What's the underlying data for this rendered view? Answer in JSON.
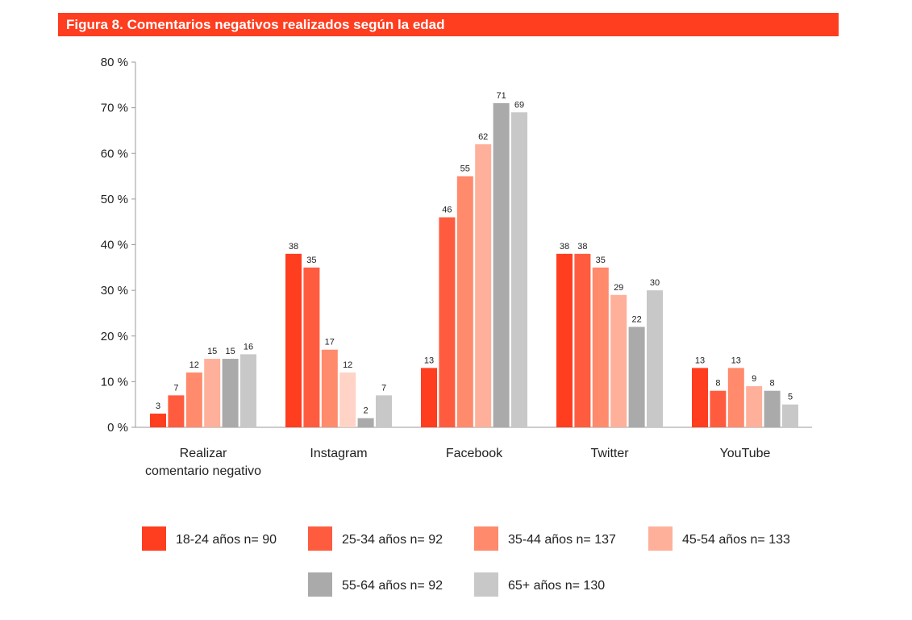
{
  "figure_title": "Figura 8. Comentarios negativos realizados según la edad",
  "chart_data": {
    "type": "bar",
    "title": "Figura 8. Comentarios negativos realizados según la edad",
    "xlabel": "",
    "ylabel": "",
    "ylim": [
      0,
      80
    ],
    "yticks": [
      "0 %",
      "10 %",
      "20 %",
      "30 %",
      "40 %",
      "50 %",
      "60 %",
      "70 %",
      "80 %"
    ],
    "grid": false,
    "legend_position": "bottom",
    "categories": [
      [
        "Realizar",
        "comentario negativo"
      ],
      [
        "Instagram"
      ],
      [
        "Facebook"
      ],
      [
        "Twitter"
      ],
      [
        "YouTube"
      ]
    ],
    "series": [
      {
        "name": "18-24 años  n= 90",
        "color": "#ff3d1f",
        "values": [
          3,
          38,
          13,
          38,
          13
        ]
      },
      {
        "name": "25-34 años n= 92",
        "color": "#ff5c3f",
        "values": [
          7,
          35,
          46,
          38,
          8
        ]
      },
      {
        "name": "35-44 años n= 137",
        "color": "#ff8a6c",
        "values": [
          12,
          17,
          55,
          35,
          13
        ]
      },
      {
        "name": "45-54 años n= 133",
        "color": "#ffb09a",
        "values": [
          15,
          12,
          62,
          29,
          9
        ]
      },
      {
        "name": "55-64 años n= 92",
        "color": "#aaaaaa",
        "values": [
          15,
          2,
          71,
          22,
          8
        ]
      },
      {
        "name": "65+ años n= 130",
        "color": "#c8c8c8",
        "values": [
          16,
          7,
          69,
          30,
          5
        ]
      }
    ],
    "overrides": [
      {
        "series": 3,
        "category": 1,
        "color": "#ffd3c6"
      }
    ]
  }
}
